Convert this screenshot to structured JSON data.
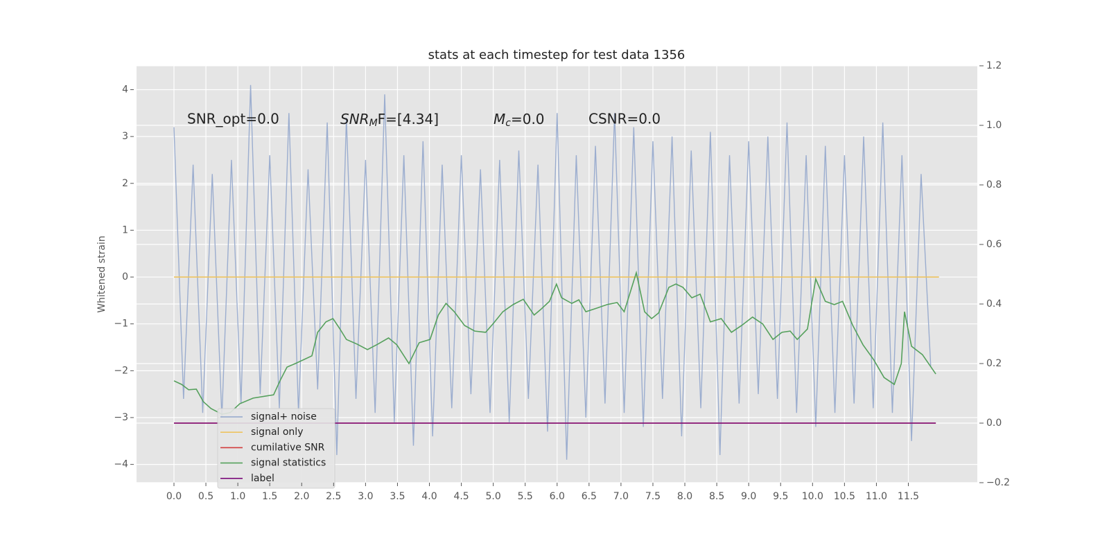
{
  "chart_data": {
    "type": "line",
    "title": "stats at each timestep for test data 1356",
    "ylabel": "Whitened strain",
    "annotations": [
      {
        "text": "SNR_opt=0.0"
      },
      {
        "base": "SNR",
        "sub": "M",
        "rest": "F=[4.34]"
      },
      {
        "base": "M",
        "sub": "c",
        "rest": "=0.0"
      },
      {
        "text": "CSNR=0.0"
      }
    ],
    "xlim": [
      -0.586,
      12.58
    ],
    "ylim": [
      -4.39,
      4.51
    ],
    "y2lim": [
      -0.2,
      1.2
    ],
    "xticks": [
      {
        "value": 0,
        "label": "0.0"
      },
      0.5,
      {
        "value": 1,
        "label": "1.0"
      },
      1.5,
      {
        "value": 2,
        "label": "2.0"
      },
      2.5,
      {
        "value": 3,
        "label": "3.0"
      },
      3.5,
      {
        "value": 4,
        "label": "4.0"
      },
      4.5,
      {
        "value": 5,
        "label": "5.0"
      },
      5.5,
      {
        "value": 6,
        "label": "6.0"
      },
      6.5,
      {
        "value": 7,
        "label": "7.0"
      },
      7.5,
      {
        "value": 8,
        "label": "8.0"
      },
      8.5,
      {
        "value": 9,
        "label": "9.0"
      },
      9.5,
      {
        "value": 10,
        "label": "10.0"
      },
      10.5,
      {
        "value": 11,
        "label": "11.0"
      },
      11.5
    ],
    "yticks": [
      {
        "value": -4,
        "label": "−4"
      },
      {
        "value": -3,
        "label": "−3"
      },
      {
        "value": -2,
        "label": "−2"
      },
      {
        "value": -1,
        "label": "−1"
      },
      0,
      1,
      2,
      3,
      4
    ],
    "y2ticks": [
      {
        "value": -0.2,
        "label": "−0.2"
      },
      {
        "value": 0,
        "label": "0.0"
      },
      0.2,
      0.4,
      0.6,
      0.8,
      {
        "value": 1,
        "label": "1.0"
      },
      1.2
    ],
    "grid": true,
    "legend": "lower left",
    "series": [
      {
        "name": "signal+ noise",
        "color": "#92a6cc",
        "x": [
          0,
          0.15,
          0.3,
          0.45,
          0.6,
          0.75,
          0.9,
          1.05,
          1.2,
          1.35,
          1.5,
          1.65,
          1.8,
          1.95,
          2.1,
          2.25,
          2.4,
          2.55,
          2.7,
          2.85,
          3,
          3.15,
          3.3,
          3.45,
          3.6,
          3.75,
          3.9,
          4.05,
          4.2,
          4.35,
          4.5,
          4.65,
          4.8,
          4.95,
          5.1,
          5.25,
          5.4,
          5.55,
          5.7,
          5.85,
          6,
          6.15,
          6.3,
          6.45,
          6.6,
          6.75,
          6.9,
          7.05,
          7.2,
          7.35,
          7.5,
          7.65,
          7.8,
          7.95,
          8.1,
          8.25,
          8.4,
          8.55,
          8.7,
          8.85,
          9,
          9.15,
          9.3,
          9.45,
          9.6,
          9.75,
          9.9,
          10.05,
          10.2,
          10.35,
          10.5,
          10.65,
          10.8,
          10.95,
          11.1,
          11.25,
          11.4,
          11.55,
          11.7,
          11.85
        ],
        "values": [
          3.2,
          -2.6,
          2.4,
          -2.9,
          2.2,
          -3.0,
          2.5,
          -2.7,
          4.1,
          -2.5,
          2.6,
          -2.8,
          3.5,
          -2.9,
          2.3,
          -2.4,
          3.3,
          -3.8,
          3.4,
          -2.6,
          2.5,
          -2.9,
          3.9,
          -3.1,
          2.6,
          -3.6,
          2.9,
          -3.4,
          2.4,
          -2.8,
          2.6,
          -2.5,
          2.3,
          -2.9,
          2.5,
          -3.1,
          2.7,
          -2.6,
          2.4,
          -3.3,
          3.5,
          -3.9,
          2.6,
          -3.0,
          2.8,
          -2.7,
          3.5,
          -2.9,
          3.2,
          -3.2,
          2.9,
          -2.6,
          3.0,
          -3.4,
          2.7,
          -2.8,
          3.1,
          -3.8,
          2.6,
          -2.7,
          2.9,
          -2.5,
          3.0,
          -2.6,
          3.3,
          -2.9,
          2.6,
          -3.2,
          2.8,
          -2.9,
          2.6,
          -2.7,
          3.0,
          -2.8,
          3.3,
          -2.9,
          2.6,
          -3.5,
          2.2,
          -1.9
        ]
      },
      {
        "name": "signal only",
        "color": "#eec35f",
        "x": [
          0,
          11.98
        ],
        "values": [
          0,
          0
        ]
      },
      {
        "name": "cumilative SNR",
        "color": "#d23b3b",
        "axis": "y2",
        "x": [
          0,
          11.93
        ],
        "values": [
          0,
          0
        ]
      },
      {
        "name": "signal statistics",
        "color": "#55a05c",
        "axis": "y2",
        "x": [
          0,
          0.12,
          0.23,
          0.35,
          0.46,
          0.58,
          0.75,
          0.88,
          1.03,
          1.24,
          1.56,
          1.66,
          1.77,
          1.9,
          2.02,
          2.16,
          2.25,
          2.38,
          2.49,
          2.6,
          2.7,
          2.87,
          3.03,
          3.19,
          3.36,
          3.49,
          3.68,
          3.84,
          4.01,
          4.14,
          4.26,
          4.39,
          4.55,
          4.71,
          4.88,
          5.01,
          5.15,
          5.31,
          5.47,
          5.64,
          5.74,
          5.88,
          5.99,
          6.07,
          6.23,
          6.34,
          6.45,
          6.62,
          6.78,
          6.94,
          7.05,
          7.24,
          7.37,
          7.48,
          7.59,
          7.75,
          7.86,
          7.97,
          8.11,
          8.24,
          8.4,
          8.57,
          8.73,
          8.89,
          9.06,
          9.22,
          9.38,
          9.52,
          9.65,
          9.76,
          9.92,
          10.05,
          10.2,
          10.34,
          10.47,
          10.63,
          10.79,
          10.96,
          11.12,
          11.28,
          11.39,
          11.44,
          11.55,
          11.72,
          11.93
        ],
        "values": [
          0.142,
          0.13,
          0.112,
          0.114,
          0.072,
          0.049,
          0.03,
          0.035,
          0.065,
          0.084,
          0.095,
          0.142,
          0.188,
          0.2,
          0.212,
          0.226,
          0.305,
          0.34,
          0.351,
          0.316,
          0.281,
          0.265,
          0.247,
          0.265,
          0.286,
          0.263,
          0.2,
          0.27,
          0.281,
          0.363,
          0.402,
          0.374,
          0.328,
          0.309,
          0.305,
          0.337,
          0.374,
          0.398,
          0.416,
          0.363,
          0.381,
          0.409,
          0.467,
          0.421,
          0.402,
          0.414,
          0.374,
          0.386,
          0.398,
          0.405,
          0.374,
          0.505,
          0.374,
          0.351,
          0.37,
          0.456,
          0.467,
          0.456,
          0.421,
          0.433,
          0.34,
          0.351,
          0.305,
          0.328,
          0.356,
          0.333,
          0.281,
          0.305,
          0.309,
          0.281,
          0.316,
          0.484,
          0.409,
          0.398,
          0.409,
          0.328,
          0.263,
          0.212,
          0.153,
          0.13,
          0.2,
          0.374,
          0.258,
          0.23,
          0.165
        ]
      },
      {
        "name": "label",
        "color": "#7a0a7a",
        "axis": "y2",
        "x": [
          0,
          11.93
        ],
        "values": [
          0,
          0
        ]
      }
    ]
  }
}
